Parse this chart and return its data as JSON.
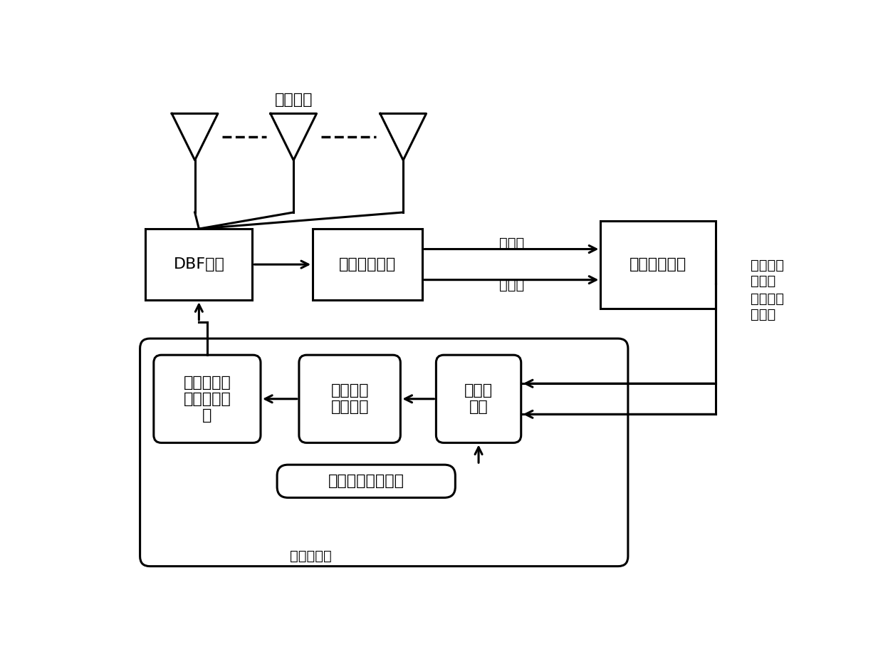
{
  "fig_width": 12.4,
  "fig_height": 9.43,
  "bg_color": "#ffffff",
  "line_color": "#000000",
  "box_color": "#ffffff",
  "text_color": "#000000",
  "antenna_label": "天线阵列",
  "dbf_label": "DBF加权",
  "beamform_label": "和差波束形成",
  "angle_demod_label": "角度误差解调",
  "angle_weight_label": "角度到权系\n数转换与配\n置",
  "second_order_label": "二阶数字\n跟踪环路",
  "coord_trans_label": "坐标系\n转换",
  "coord_select_label": "坐标系选择与控制",
  "wave_ctrl_label": "波控计算机",
  "sum_signal_label": "和信号",
  "diff_signal_label": "差信号",
  "azimuth_err_label": "方位维误\n差电压",
  "elevation_err_label": "俯仰维误\n差电压",
  "font_size_main": 16,
  "font_size_label": 14,
  "font_size_small": 13
}
